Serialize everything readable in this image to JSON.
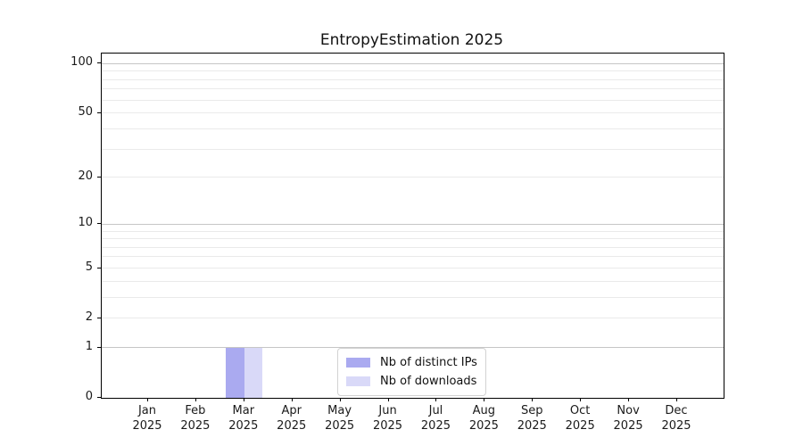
{
  "chart_data": {
    "type": "bar",
    "title": "EntropyEstimation 2025",
    "categories": [
      "Jan",
      "Feb",
      "Mar",
      "Apr",
      "May",
      "Jun",
      "Jul",
      "Aug",
      "Sep",
      "Oct",
      "Nov",
      "Dec"
    ],
    "year_label": "2025",
    "series": [
      {
        "name": "Nb of distinct IPs",
        "color": "#aaaaf0",
        "values": [
          0,
          0,
          1,
          0,
          0,
          0,
          0,
          0,
          0,
          0,
          0,
          0
        ]
      },
      {
        "name": "Nb of downloads",
        "color": "#d9d9f8",
        "values": [
          0,
          0,
          1,
          0,
          0,
          0,
          0,
          0,
          0,
          0,
          0,
          0
        ]
      }
    ],
    "yscale": "log1p",
    "ylim": [
      0,
      115
    ],
    "yticks_labeled": [
      0,
      1,
      2,
      5,
      10,
      20,
      50,
      100
    ],
    "yticks_major": [
      1,
      10,
      100
    ],
    "yticks_minor": [
      2,
      3,
      4,
      5,
      6,
      7,
      8,
      9,
      20,
      30,
      40,
      50,
      60,
      70,
      80,
      90
    ],
    "grid": true,
    "legend": {
      "position": "lower center",
      "entries": [
        "Nb of distinct IPs",
        "Nb of downloads"
      ]
    },
    "colors": {
      "major_grid": "#c6c6c6",
      "minor_grid": "#eaeaea",
      "spine": "#000000",
      "legend_border": "#d2d2d2",
      "text": "#1a1a1a"
    }
  }
}
